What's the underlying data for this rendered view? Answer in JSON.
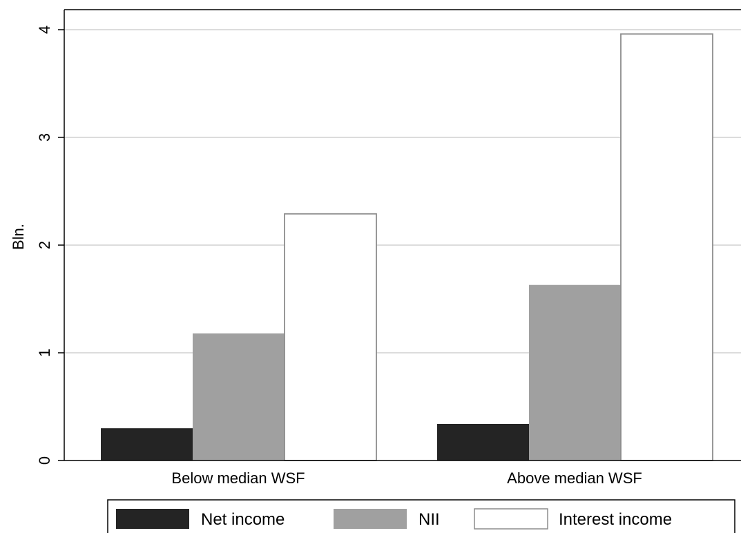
{
  "chart_data": {
    "type": "bar",
    "title": "",
    "xlabel": "",
    "ylabel": "Bln.",
    "ylim": [
      0,
      4.2
    ],
    "yticks": [
      0,
      1,
      2,
      3,
      4
    ],
    "grid": true,
    "legend_position": "bottom",
    "categories": [
      "Below median WSF",
      "Above median WSF"
    ],
    "series": [
      {
        "name": "Net income",
        "values": [
          0.3,
          0.34
        ],
        "color": "#242424"
      },
      {
        "name": "NII",
        "values": [
          1.18,
          1.63
        ],
        "color": "#a0a0a0"
      },
      {
        "name": "Interest income",
        "values": [
          2.29,
          3.96
        ],
        "color": "#ffffff"
      }
    ]
  }
}
